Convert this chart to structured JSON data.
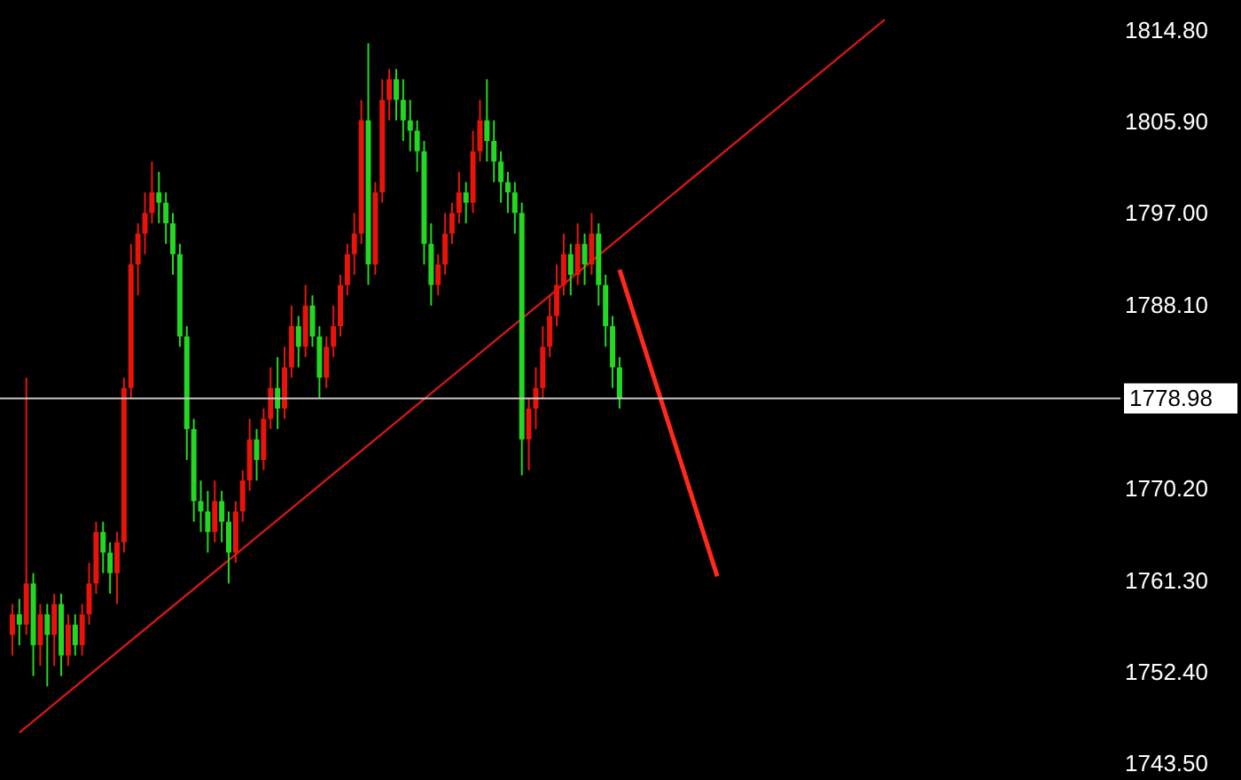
{
  "chart_data": {
    "type": "candlestick",
    "categories": [
      null,
      null,
      null,
      null,
      null,
      null,
      null,
      null,
      null,
      null,
      null,
      null,
      null,
      null,
      null,
      null,
      null,
      null,
      null,
      null,
      null,
      null,
      null,
      null,
      null,
      null,
      null,
      null,
      null,
      null,
      null,
      null,
      null,
      null,
      null,
      null,
      null,
      null,
      null,
      null,
      null,
      null,
      null,
      null,
      null,
      null,
      null,
      null,
      null,
      null,
      null,
      null,
      null,
      null,
      null,
      null,
      null,
      null,
      null,
      null,
      null,
      null,
      null,
      null,
      null,
      null,
      null,
      null,
      null,
      null,
      null,
      null,
      null,
      null,
      null,
      null,
      null,
      null,
      null,
      null,
      null,
      null,
      null,
      null,
      null,
      null,
      null,
      null,
      null,
      null,
      null,
      null,
      null,
      null,
      null,
      null,
      null,
      null,
      null,
      null,
      null,
      null,
      null,
      null,
      null,
      null,
      null,
      null,
      null,
      null,
      null,
      null,
      null,
      null,
      null,
      null,
      null,
      null,
      null,
      null,
      null,
      null,
      null,
      null,
      null,
      null,
      null,
      null,
      null,
      null,
      null,
      null,
      null,
      null,
      null,
      null,
      null,
      null,
      null,
      null,
      null,
      null,
      null,
      null,
      null,
      null,
      null,
      null,
      null,
      null,
      null,
      null,
      null,
      null,
      null,
      null,
      null,
      null
    ],
    "ohlc": [
      [
        1756,
        1759,
        1754,
        1758
      ],
      [
        1758,
        1759.5,
        1755,
        1757
      ],
      [
        1757,
        1781,
        1756,
        1761
      ],
      [
        1761,
        1762,
        1752,
        1755
      ],
      [
        1755,
        1759,
        1753,
        1758
      ],
      [
        1758,
        1759,
        1751,
        1756
      ],
      [
        1756,
        1760,
        1753,
        1759
      ],
      [
        1759,
        1760,
        1752,
        1754
      ],
      [
        1754,
        1758,
        1753,
        1757
      ],
      [
        1757,
        1758,
        1754,
        1755
      ],
      [
        1755,
        1759,
        1754,
        1758
      ],
      [
        1758,
        1763,
        1757,
        1761
      ],
      [
        1761,
        1767,
        1760,
        1766
      ],
      [
        1766,
        1767,
        1762,
        1764
      ],
      [
        1764,
        1765,
        1760,
        1762
      ],
      [
        1762,
        1766,
        1759,
        1765
      ],
      [
        1765,
        1781,
        1764,
        1780
      ],
      [
        1780,
        1794,
        1779,
        1792
      ],
      [
        1792,
        1796,
        1789,
        1795
      ],
      [
        1795,
        1799,
        1793,
        1797
      ],
      [
        1797,
        1802,
        1796,
        1799
      ],
      [
        1799,
        1801,
        1796,
        1798
      ],
      [
        1798,
        1799,
        1794,
        1796
      ],
      [
        1796,
        1797,
        1791,
        1793
      ],
      [
        1793,
        1794,
        1784,
        1785
      ],
      [
        1785,
        1786,
        1773,
        1776
      ],
      [
        1776,
        1777,
        1767,
        1769
      ],
      [
        1769,
        1771,
        1766,
        1768
      ],
      [
        1768,
        1770,
        1764,
        1766
      ],
      [
        1766,
        1771,
        1765,
        1769
      ],
      [
        1769,
        1770,
        1765,
        1767
      ],
      [
        1767,
        1768,
        1761,
        1764
      ],
      [
        1764,
        1769,
        1763,
        1768
      ],
      [
        1768,
        1772,
        1767,
        1771
      ],
      [
        1771,
        1777,
        1770,
        1775
      ],
      [
        1775,
        1776,
        1771,
        1773
      ],
      [
        1773,
        1778,
        1772,
        1777
      ],
      [
        1777,
        1782,
        1776,
        1780
      ],
      [
        1780,
        1783,
        1776,
        1778
      ],
      [
        1778,
        1784,
        1777,
        1782
      ],
      [
        1782,
        1788,
        1781,
        1786
      ],
      [
        1786,
        1787,
        1782,
        1784
      ],
      [
        1784,
        1790,
        1783,
        1788
      ],
      [
        1788,
        1789,
        1784,
        1785
      ],
      [
        1785,
        1786,
        1779,
        1781
      ],
      [
        1781,
        1785,
        1780,
        1784
      ],
      [
        1784,
        1788,
        1783,
        1786
      ],
      [
        1786,
        1791,
        1785,
        1790
      ],
      [
        1790,
        1794,
        1789,
        1793
      ],
      [
        1793,
        1797,
        1791,
        1795
      ],
      [
        1795,
        1808,
        1794,
        1806
      ],
      [
        1806,
        1813.5,
        1790,
        1792
      ],
      [
        1792,
        1800,
        1791,
        1799
      ],
      [
        1799,
        1810,
        1798,
        1808
      ],
      [
        1808,
        1811,
        1806,
        1810
      ],
      [
        1810,
        1811,
        1806,
        1808
      ],
      [
        1808,
        1810,
        1804,
        1806
      ],
      [
        1806,
        1808,
        1803,
        1805
      ],
      [
        1805,
        1806,
        1801,
        1803
      ],
      [
        1803,
        1804,
        1792,
        1794
      ],
      [
        1794,
        1796,
        1788,
        1790
      ],
      [
        1790,
        1793,
        1789,
        1792
      ],
      [
        1792,
        1797,
        1791,
        1795
      ],
      [
        1795,
        1798,
        1794,
        1797
      ],
      [
        1797,
        1801,
        1796,
        1799
      ],
      [
        1799,
        1800,
        1796,
        1798
      ],
      [
        1798,
        1805,
        1797,
        1803
      ],
      [
        1803,
        1808,
        1802,
        1806
      ],
      [
        1806,
        1810,
        1802,
        1804
      ],
      [
        1804,
        1806,
        1800,
        1802
      ],
      [
        1802,
        1803,
        1798,
        1800
      ],
      [
        1800,
        1801,
        1797,
        1799
      ],
      [
        1799,
        1800,
        1795,
        1797
      ],
      [
        1797,
        1798,
        1771.5,
        1775
      ],
      [
        1775,
        1779,
        1772,
        1778
      ],
      [
        1778,
        1782,
        1776,
        1780
      ],
      [
        1780,
        1786,
        1779,
        1784
      ],
      [
        1784,
        1789,
        1783,
        1787
      ],
      [
        1787,
        1792,
        1786,
        1790
      ],
      [
        1790,
        1795,
        1789,
        1793
      ],
      [
        1793,
        1794,
        1789,
        1791
      ],
      [
        1791,
        1796,
        1790,
        1794
      ],
      [
        1794,
        1795,
        1790,
        1792
      ],
      [
        1792,
        1797,
        1791,
        1795
      ],
      [
        1795,
        1796,
        1788,
        1790
      ],
      [
        1790,
        1791,
        1784,
        1786
      ],
      [
        1786,
        1787,
        1780,
        1782
      ],
      [
        1782,
        1783,
        1778,
        1779
      ],
      null,
      null,
      null,
      null,
      null,
      null,
      null,
      null,
      null,
      null,
      null,
      null,
      null,
      null,
      null,
      null,
      null,
      null,
      null,
      null,
      null,
      null,
      null,
      null,
      null,
      null,
      null,
      null,
      null,
      null,
      null,
      null,
      null,
      null,
      null,
      null,
      null,
      null,
      null,
      null,
      null,
      null,
      null,
      null,
      null,
      null,
      null,
      null,
      null,
      null,
      null,
      null,
      null,
      null,
      null,
      null,
      null,
      null,
      null,
      null,
      null,
      null,
      null,
      null,
      null,
      null,
      null,
      null,
      null,
      null
    ],
    "colors": [
      "#e8140c",
      "#22d822",
      "#e8140c",
      "#22d822",
      "#e8140c",
      "#22d822",
      "#e8140c",
      "#22d822",
      "#e8140c",
      "#22d822",
      "#e8140c",
      "#e8140c",
      "#e8140c",
      "#22d822",
      "#22d822",
      "#e8140c",
      "#e8140c",
      "#e8140c",
      "#e8140c",
      "#e8140c",
      "#e8140c",
      "#22d822",
      "#22d822",
      "#22d822",
      "#22d822",
      "#22d822",
      "#22d822",
      "#22d822",
      "#22d822",
      "#e8140c",
      "#22d822",
      "#22d822",
      "#e8140c",
      "#e8140c",
      "#e8140c",
      "#22d822",
      "#e8140c",
      "#e8140c",
      "#22d822",
      "#e8140c",
      "#e8140c",
      "#22d822",
      "#e8140c",
      "#22d822",
      "#22d822",
      "#e8140c",
      "#e8140c",
      "#e8140c",
      "#e8140c",
      "#e8140c",
      "#e8140c",
      "#22d822",
      "#e8140c",
      "#e8140c",
      "#e8140c",
      "#22d822",
      "#22d822",
      "#22d822",
      "#22d822",
      "#22d822",
      "#22d822",
      "#e8140c",
      "#e8140c",
      "#e8140c",
      "#e8140c",
      "#22d822",
      "#e8140c",
      "#e8140c",
      "#22d822",
      "#22d822",
      "#22d822",
      "#22d822",
      "#22d822",
      "#22d822",
      "#e8140c",
      "#e8140c",
      "#e8140c",
      "#e8140c",
      "#e8140c",
      "#e8140c",
      "#22d822",
      "#e8140c",
      "#22d822",
      "#e8140c",
      "#22d822",
      "#22d822",
      "#22d822",
      "#22d822",
      null,
      null,
      null,
      null,
      null,
      null,
      null,
      null,
      null,
      null,
      null,
      null,
      null,
      null,
      null,
      null,
      null,
      null,
      null,
      null,
      null,
      null,
      null,
      null,
      null,
      null,
      null,
      null,
      null,
      null,
      null,
      null,
      null,
      null,
      null,
      null,
      null,
      null,
      null,
      null,
      null,
      null,
      null,
      null,
      null,
      null,
      null,
      null,
      null,
      null,
      null,
      null,
      null,
      null,
      null,
      null,
      null,
      null,
      null,
      null,
      null,
      null,
      null,
      null,
      null,
      null,
      null,
      null,
      null,
      null
    ],
    "series": [
      {
        "type": "line",
        "color": "#d01818",
        "values": [
          null,
          1746.5,
          null,
          null,
          null,
          null,
          null,
          null,
          null,
          null,
          null,
          null,
          null,
          null,
          null,
          null,
          null,
          null,
          null,
          null,
          null,
          null,
          null,
          null,
          null,
          null,
          null,
          null,
          null,
          null,
          null,
          null,
          null,
          null,
          null,
          null,
          null,
          null,
          null,
          null,
          null,
          null,
          null,
          null,
          null,
          null,
          null,
          null,
          null,
          null,
          null,
          null,
          null,
          null,
          null,
          null,
          null,
          null,
          null,
          null,
          null,
          null,
          null,
          null,
          null,
          null,
          null,
          null,
          null,
          null,
          null,
          null,
          null,
          null,
          null,
          null,
          null,
          null,
          null,
          null,
          null,
          null,
          null,
          null,
          null,
          null,
          null,
          null,
          null,
          null,
          null,
          null,
          null,
          null,
          null,
          null,
          null,
          null,
          null,
          null,
          null,
          null,
          null,
          null,
          null,
          null,
          null,
          null,
          null,
          null,
          null,
          null,
          null,
          null,
          null,
          null,
          null,
          null,
          null,
          null,
          null,
          null,
          null,
          null,
          null,
          1815.8,
          null,
          null,
          null,
          null,
          null,
          null,
          null,
          null,
          null,
          null,
          null,
          null,
          null,
          null,
          null,
          null,
          null,
          null,
          null,
          null,
          null,
          null,
          null,
          null,
          null,
          null,
          null,
          null,
          null,
          null,
          null,
          null
        ]
      },
      {
        "type": "line",
        "color": "#ff2a1a",
        "values": [
          null,
          null,
          null,
          null,
          null,
          null,
          null,
          null,
          null,
          null,
          null,
          null,
          null,
          null,
          null,
          null,
          null,
          null,
          null,
          null,
          null,
          null,
          null,
          null,
          null,
          null,
          null,
          null,
          null,
          null,
          null,
          null,
          null,
          null,
          null,
          null,
          null,
          null,
          null,
          null,
          null,
          null,
          null,
          null,
          null,
          null,
          null,
          null,
          null,
          null,
          null,
          null,
          null,
          null,
          null,
          null,
          null,
          null,
          null,
          null,
          null,
          null,
          null,
          null,
          null,
          null,
          null,
          null,
          null,
          null,
          null,
          null,
          null,
          null,
          null,
          null,
          null,
          null,
          null,
          null,
          null,
          null,
          null,
          null,
          null,
          null,
          null,
          1791.5,
          null,
          null,
          null,
          null,
          null,
          null,
          null,
          null,
          null,
          null,
          null,
          null,
          null,
          1761.7,
          null,
          null,
          null,
          null,
          null,
          null,
          null,
          null,
          null,
          null,
          null,
          null,
          null,
          null,
          null,
          null,
          null,
          null,
          null,
          null,
          null,
          null,
          null,
          null,
          null,
          null,
          null,
          null,
          null,
          null,
          null,
          null,
          null,
          null,
          null,
          null,
          null,
          null,
          null,
          null,
          null,
          null,
          null,
          null,
          null,
          null,
          null,
          null,
          null,
          null,
          null,
          null,
          null,
          null,
          null,
          null
        ]
      }
    ],
    "ylim": [
      1741.9,
      1817.7
    ],
    "yticks": [
      {
        "value": 1814.8,
        "label": "1814.80"
      },
      {
        "value": 1805.9,
        "label": "1805.90"
      },
      {
        "value": 1797,
        "label": "1797.00"
      },
      {
        "value": 1788.1,
        "label": "1788.10"
      },
      {
        "value": 1770.2,
        "label": "1770.20"
      },
      {
        "value": 1761.3,
        "label": "1761.30"
      },
      {
        "value": 1752.4,
        "label": "1752.40"
      },
      {
        "value": 1743.5,
        "label": "1743.50"
      }
    ],
    "ref_lines": [
      {
        "axis": "y",
        "value": 1778.98,
        "label": "1778.98",
        "color": "#c8c8c8"
      }
    ],
    "tick_labels": "y",
    "grid": false
  }
}
